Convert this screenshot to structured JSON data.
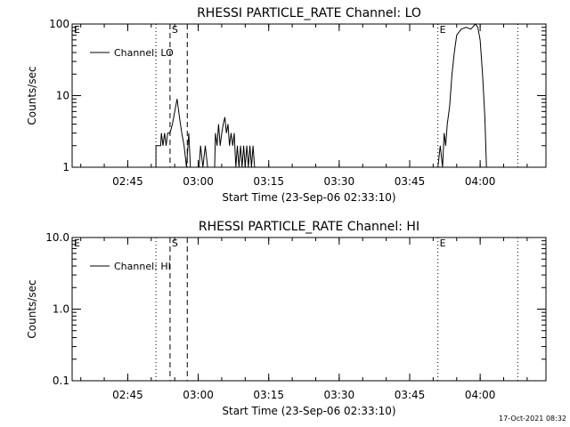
{
  "footer": {
    "timestamp": "17-Oct-2021 08:32"
  },
  "chart_data": [
    {
      "type": "line",
      "title": "RHESSI PARTICLE_RATE Channel: LO",
      "xlabel": "Start Time (23-Sep-06 02:33:10)",
      "ylabel": "Counts/sec",
      "yscale": "log",
      "xlim": [
        "02:33:10",
        "04:14:00"
      ],
      "ylim": [
        1,
        100
      ],
      "x_ticks": [
        "02:45",
        "03:00",
        "03:15",
        "03:30",
        "03:45",
        "04:00"
      ],
      "y_ticks": [
        "1",
        "10",
        "100"
      ],
      "legend": {
        "position": "top-left",
        "entries": [
          "Channel: LO"
        ]
      },
      "markers": [
        {
          "label": "E",
          "time": "02:33:10",
          "style": "dotted"
        },
        {
          "label": "",
          "time": "02:51:00",
          "style": "dotted"
        },
        {
          "label": "S",
          "time": "02:54:00",
          "style": "dashed"
        },
        {
          "label": "",
          "time": "02:57:40",
          "style": "dashed"
        },
        {
          "label": "E",
          "time": "03:51:00",
          "style": "dotted"
        },
        {
          "label": "",
          "time": "04:08:00",
          "style": "dotted"
        }
      ],
      "series": [
        {
          "name": "Channel: LO",
          "points": [
            [
              "02:51:00",
              1
            ],
            [
              "02:51:00",
              2
            ],
            [
              "02:52:00",
              2
            ],
            [
              "02:52:10",
              3
            ],
            [
              "02:52:30",
              2
            ],
            [
              "02:52:50",
              3
            ],
            [
              "02:53:10",
              2
            ],
            [
              "02:53:30",
              3
            ],
            [
              "02:54:00",
              3
            ],
            [
              "02:54:30",
              4
            ],
            [
              "02:55:00",
              6
            ],
            [
              "02:55:30",
              9
            ],
            [
              "02:56:00",
              5
            ],
            [
              "02:56:30",
              3
            ],
            [
              "02:57:00",
              2
            ],
            [
              "02:57:30",
              1
            ],
            [
              "02:58:00",
              3
            ],
            [
              "02:58:20",
              1
            ],
            [
              "02:59:00",
              1
            ],
            [
              "02:59:30",
              1
            ],
            [
              "03:00:10",
              1
            ],
            [
              "03:00:30",
              2
            ],
            [
              "03:01:00",
              1
            ],
            [
              "03:01:30",
              2
            ],
            [
              "03:02:00",
              1
            ],
            [
              "03:03:30",
              1
            ],
            [
              "03:03:40",
              3
            ],
            [
              "03:04:00",
              2
            ],
            [
              "03:04:20",
              4
            ],
            [
              "03:04:40",
              2
            ],
            [
              "03:05:00",
              3
            ],
            [
              "03:05:20",
              4
            ],
            [
              "03:05:40",
              5
            ],
            [
              "03:06:00",
              3
            ],
            [
              "03:06:20",
              4
            ],
            [
              "03:06:40",
              2
            ],
            [
              "03:07:00",
              3
            ],
            [
              "03:07:20",
              2
            ],
            [
              "03:07:40",
              3
            ],
            [
              "03:08:00",
              1
            ],
            [
              "03:08:20",
              2
            ],
            [
              "03:08:40",
              1
            ],
            [
              "03:09:00",
              2
            ],
            [
              "03:09:20",
              1
            ],
            [
              "03:09:40",
              2
            ],
            [
              "03:10:00",
              1
            ],
            [
              "03:10:20",
              2
            ],
            [
              "03:10:40",
              1
            ],
            [
              "03:11:00",
              2
            ],
            [
              "03:11:20",
              1
            ],
            [
              "03:11:40",
              2
            ],
            [
              "03:12:00",
              1
            ],
            [
              "03:51:00",
              1
            ],
            [
              "03:51:30",
              2
            ],
            [
              "03:52:00",
              1
            ],
            [
              "03:52:20",
              3
            ],
            [
              "03:52:40",
              2
            ],
            [
              "03:53:00",
              4
            ],
            [
              "03:53:30",
              7
            ],
            [
              "03:54:00",
              20
            ],
            [
              "03:54:30",
              40
            ],
            [
              "03:55:00",
              70
            ],
            [
              "03:56:00",
              85
            ],
            [
              "03:57:00",
              90
            ],
            [
              "03:58:00",
              85
            ],
            [
              "03:59:00",
              100
            ],
            [
              "03:59:30",
              90
            ],
            [
              "04:00:00",
              60
            ],
            [
              "04:00:30",
              20
            ],
            [
              "04:01:00",
              5
            ],
            [
              "04:01:20",
              1
            ]
          ]
        }
      ]
    },
    {
      "type": "line",
      "title": "RHESSI PARTICLE_RATE Channel: HI",
      "xlabel": "Start Time (23-Sep-06 02:33:10)",
      "ylabel": "Counts/sec",
      "yscale": "log",
      "xlim": [
        "02:33:10",
        "04:14:00"
      ],
      "ylim": [
        0.1,
        10
      ],
      "x_ticks": [
        "02:45",
        "03:00",
        "03:15",
        "03:30",
        "03:45",
        "04:00"
      ],
      "y_ticks": [
        "0.1",
        "1.0",
        "10.0"
      ],
      "legend": {
        "position": "top-left",
        "entries": [
          "Channel: HI"
        ]
      },
      "markers": [
        {
          "label": "E",
          "time": "02:33:10",
          "style": "dotted"
        },
        {
          "label": "",
          "time": "02:51:00",
          "style": "dotted"
        },
        {
          "label": "S",
          "time": "02:54:00",
          "style": "dashed"
        },
        {
          "label": "",
          "time": "02:57:40",
          "style": "dashed"
        },
        {
          "label": "E",
          "time": "03:51:00",
          "style": "dotted"
        },
        {
          "label": "",
          "time": "04:08:00",
          "style": "dotted"
        }
      ],
      "series": [
        {
          "name": "Channel: HI",
          "points": []
        }
      ]
    }
  ]
}
